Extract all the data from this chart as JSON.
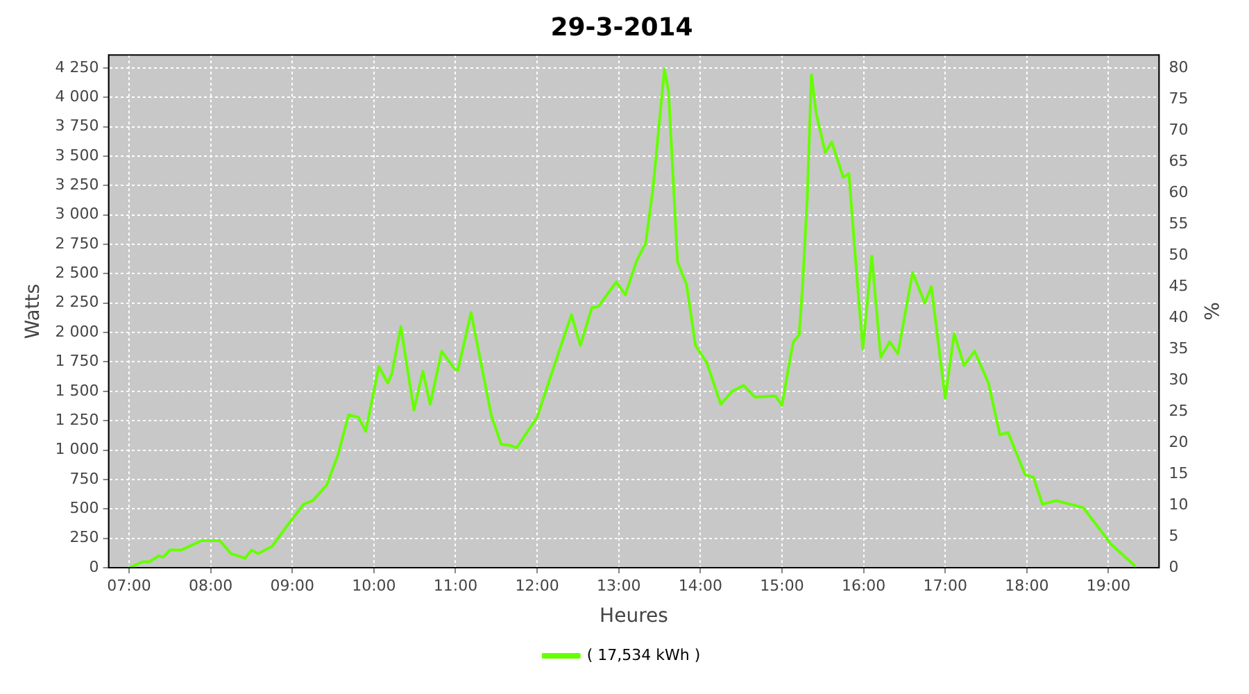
{
  "chart_data": {
    "type": "line",
    "title": "29-3-2014",
    "xlabel": "Heures",
    "ylabel": "Watts",
    "y2label": "%",
    "xlim": [
      6.75,
      19.62
    ],
    "ylim": [
      0,
      4360
    ],
    "y2lim": [
      0,
      82.07
    ],
    "xticks": [
      {
        "value": 7,
        "label": "07:00"
      },
      {
        "value": 8,
        "label": "08:00"
      },
      {
        "value": 9,
        "label": "09:00"
      },
      {
        "value": 10,
        "label": "10:00"
      },
      {
        "value": 11,
        "label": "11:00"
      },
      {
        "value": 12,
        "label": "12:00"
      },
      {
        "value": 13,
        "label": "13:00"
      },
      {
        "value": 14,
        "label": "14:00"
      },
      {
        "value": 15,
        "label": "15:00"
      },
      {
        "value": 16,
        "label": "16:00"
      },
      {
        "value": 17,
        "label": "17:00"
      },
      {
        "value": 18,
        "label": "18:00"
      },
      {
        "value": 19,
        "label": "19:00"
      }
    ],
    "yticks": [
      0,
      250,
      500,
      750,
      {
        "value": 1000,
        "label": "1 000"
      },
      {
        "value": 1250,
        "label": "1 250"
      },
      {
        "value": 1500,
        "label": "1 500"
      },
      {
        "value": 1750,
        "label": "1 750"
      },
      {
        "value": 2000,
        "label": "2 000"
      },
      {
        "value": 2250,
        "label": "2 250"
      },
      {
        "value": 2500,
        "label": "2 500"
      },
      {
        "value": 2750,
        "label": "2 750"
      },
      {
        "value": 3000,
        "label": "3 000"
      },
      {
        "value": 3250,
        "label": "3 250"
      },
      {
        "value": 3500,
        "label": "3 500"
      },
      {
        "value": 3750,
        "label": "3 750"
      },
      {
        "value": 4000,
        "label": "4 000"
      },
      {
        "value": 4250,
        "label": "4 250"
      }
    ],
    "y2ticks": [
      0,
      5,
      10,
      15,
      20,
      25,
      30,
      35,
      40,
      45,
      50,
      55,
      60,
      65,
      70,
      75,
      80
    ],
    "grid": true,
    "legend": "bottom",
    "series": [
      {
        "name": "( 17,534 kWh )",
        "color": "#66ff00",
        "x": [
          7.0,
          7.17,
          7.25,
          7.36,
          7.42,
          7.5,
          7.64,
          7.89,
          8.11,
          8.25,
          8.42,
          8.5,
          8.58,
          8.75,
          8.94,
          9.14,
          9.25,
          9.42,
          9.56,
          9.69,
          9.81,
          9.9,
          10.06,
          10.17,
          10.22,
          10.33,
          10.49,
          10.6,
          10.69,
          10.83,
          10.99,
          11.03,
          11.19,
          11.44,
          11.56,
          11.67,
          11.75,
          12.0,
          12.22,
          12.42,
          12.53,
          12.67,
          12.75,
          12.97,
          13.08,
          13.22,
          13.33,
          13.42,
          13.56,
          13.61,
          13.72,
          13.83,
          13.94,
          14.08,
          14.25,
          14.39,
          14.53,
          14.67,
          14.92,
          15.0,
          15.11,
          15.14,
          15.21,
          15.25,
          15.31,
          15.36,
          15.42,
          15.53,
          15.61,
          15.75,
          15.82,
          15.92,
          15.99,
          16.1,
          16.21,
          16.32,
          16.42,
          16.6,
          16.75,
          16.83,
          17.0,
          17.11,
          17.23,
          17.36,
          17.53,
          17.67,
          17.77,
          17.98,
          18.08,
          18.19,
          18.36,
          18.64,
          18.69,
          18.89,
          19.03,
          19.19,
          19.33
        ],
        "values": [
          0,
          50,
          50,
          100,
          90,
          150,
          150,
          230,
          230,
          120,
          80,
          150,
          120,
          180,
          360,
          540,
          570,
          700,
          960,
          1300,
          1280,
          1160,
          1710,
          1570,
          1650,
          2050,
          1340,
          1670,
          1390,
          1840,
          1690,
          1680,
          2170,
          1290,
          1050,
          1040,
          1020,
          1280,
          1740,
          2150,
          1890,
          2210,
          2220,
          2430,
          2320,
          2610,
          2760,
          3230,
          4240,
          4050,
          2600,
          2410,
          1890,
          1740,
          1390,
          1500,
          1550,
          1450,
          1460,
          1380,
          1820,
          1920,
          1980,
          2370,
          3150,
          4190,
          3860,
          3530,
          3620,
          3320,
          3350,
          2450,
          1860,
          2650,
          1790,
          1920,
          1820,
          2510,
          2250,
          2390,
          1440,
          1990,
          1720,
          1840,
          1570,
          1130,
          1150,
          790,
          770,
          540,
          570,
          520,
          510,
          330,
          200,
          100,
          10
        ]
      }
    ]
  }
}
